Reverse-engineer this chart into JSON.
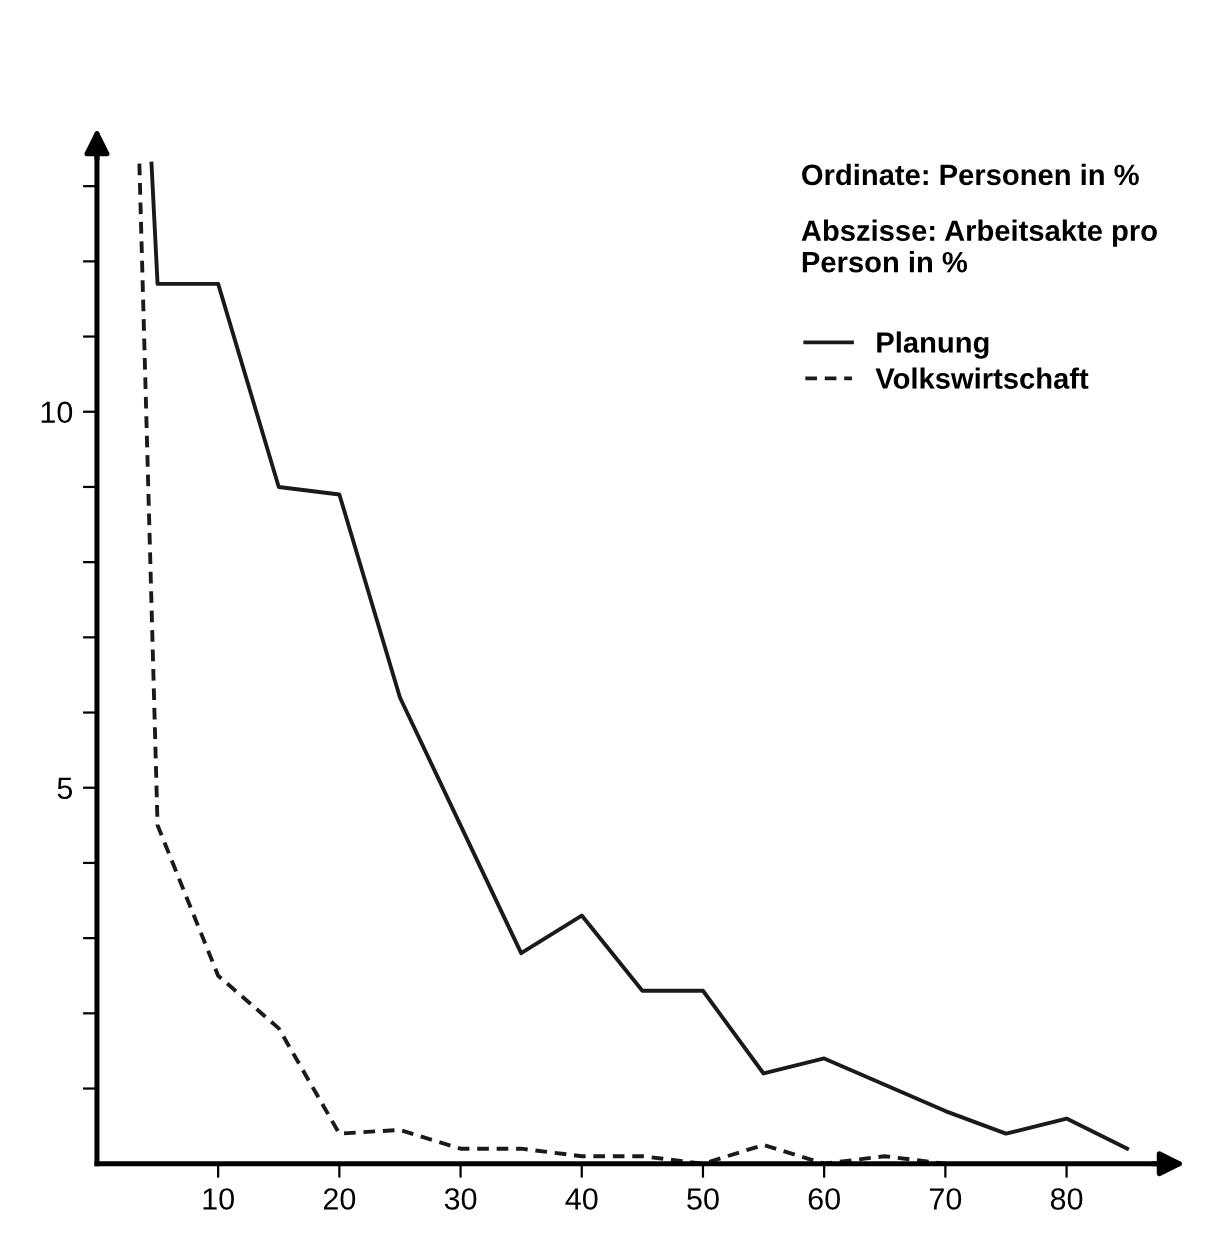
{
  "chart_data": {
    "type": "line",
    "annotations": [
      "Ordinate: Personen in %",
      "Abszisse: Arbeitsakte pro Person in %"
    ],
    "series": [
      {
        "name": "Planung",
        "color": "#1a1a1a",
        "line_style": "solid",
        "x": [
          4.5,
          5,
          10,
          15,
          20,
          25,
          30,
          35,
          40,
          45,
          50,
          55,
          60,
          65,
          70,
          75,
          80,
          85
        ],
        "values": [
          13.3,
          11.7,
          11.7,
          9.0,
          8.9,
          6.2,
          4.5,
          2.8,
          3.3,
          2.3,
          2.3,
          1.2,
          1.4,
          1.05,
          0.7,
          0.4,
          0.6,
          0.2
        ]
      },
      {
        "name": "Volkswirtschaft",
        "color": "#1a1a1a",
        "line_style": "dashed",
        "x": [
          3.5,
          5,
          10,
          15,
          20,
          25,
          30,
          35,
          40,
          45,
          50,
          55,
          60,
          65,
          70
        ],
        "values": [
          13.3,
          4.5,
          2.5,
          1.8,
          0.4,
          0.45,
          0.2,
          0.2,
          0.1,
          0.1,
          0.0,
          0.25,
          0.0,
          0.1,
          0.0
        ]
      }
    ],
    "xlim": [
      0,
      88
    ],
    "ylim": [
      0,
      13.5
    ],
    "xticks": [
      10,
      20,
      30,
      40,
      50,
      60,
      70,
      80
    ],
    "yticks": [
      {
        "value": 1,
        "label": null
      },
      {
        "value": 2,
        "label": null
      },
      {
        "value": 3,
        "label": null
      },
      {
        "value": 4,
        "label": null
      },
      5,
      {
        "value": 6,
        "label": null
      },
      {
        "value": 7,
        "label": null
      },
      {
        "value": 8,
        "label": null
      },
      {
        "value": 9,
        "label": null
      },
      10,
      {
        "value": 11,
        "label": null
      },
      {
        "value": 12,
        "label": null
      },
      {
        "value": 13,
        "label": null
      }
    ],
    "grid": false,
    "legend": "top right",
    "marker": "none"
  }
}
